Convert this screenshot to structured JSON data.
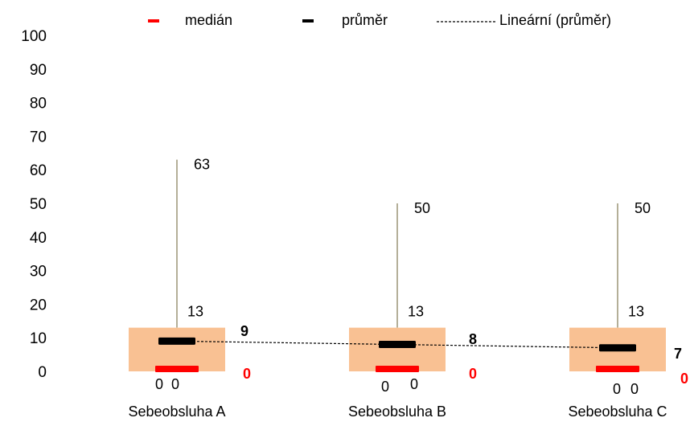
{
  "chart_data": {
    "type": "box",
    "categories": [
      "Sebeobsluha A",
      "Sebeobsluha B",
      "Sebeobsluha C"
    ],
    "ylim": [
      0,
      100
    ],
    "yticks": [
      0,
      10,
      20,
      30,
      40,
      50,
      60,
      70,
      80,
      90,
      100
    ],
    "grid": false,
    "legend_position": "top",
    "legend": {
      "median": "medián",
      "mean": "průměr",
      "trend": "Lineární (průměr)"
    },
    "series": [
      {
        "category": "Sebeobsluha A",
        "min": 0,
        "q1": 0,
        "median": 0,
        "q3": 13,
        "max": 63,
        "mean": 9
      },
      {
        "category": "Sebeobsluha B",
        "min": 0,
        "q1": 0,
        "median": 0,
        "q3": 13,
        "max": 50,
        "mean": 8
      },
      {
        "category": "Sebeobsluha C",
        "min": 0,
        "q1": 0,
        "median": 0,
        "q3": 13,
        "max": 50,
        "mean": 7
      }
    ],
    "colors": {
      "box": "#f9c193",
      "median": "#ff0000",
      "mean": "#000000",
      "whisker": "#8c8462",
      "trend": "#000000"
    }
  }
}
